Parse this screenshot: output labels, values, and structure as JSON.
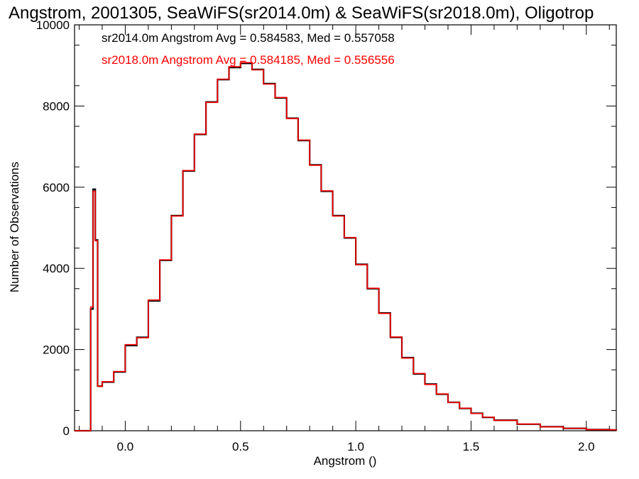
{
  "chart_data": {
    "type": "line",
    "title": "Angstrom, 2001305, SeaWiFS(sr2014.0m) & SeaWiFS(sr2018.0m), Oligotrop",
    "xlabel": "Angstrom ()",
    "ylabel": "Number of Observations",
    "xlim": [
      -0.22,
      2.13
    ],
    "ylim": [
      0,
      10000
    ],
    "x_ticks": [
      0.0,
      0.5,
      1.0,
      1.5,
      2.0
    ],
    "x_tick_labels": [
      "0.0",
      "0.5",
      "1.0",
      "1.5",
      "2.0"
    ],
    "y_ticks": [
      0,
      2000,
      4000,
      6000,
      8000,
      10000
    ],
    "y_tick_labels": [
      "0",
      "2000",
      "4000",
      "6000",
      "8000",
      "10000"
    ],
    "grid": false,
    "annotations": [
      {
        "text": "sr2014.0m Angstrom Avg = 0.584583, Med = 0.557058",
        "color": "#000000"
      },
      {
        "text": "sr2018.0m Angstrom Avg = 0.584185, Med = 0.556556",
        "color": "#ff0000"
      }
    ],
    "series": [
      {
        "color": "#000000",
        "x": [
          -0.22,
          -0.16,
          -0.15,
          -0.14,
          -0.13,
          -0.12,
          -0.11,
          -0.1,
          -0.05,
          0.0,
          0.05,
          0.1,
          0.15,
          0.2,
          0.25,
          0.3,
          0.35,
          0.4,
          0.45,
          0.5,
          0.55,
          0.6,
          0.65,
          0.7,
          0.75,
          0.8,
          0.85,
          0.9,
          0.95,
          1.0,
          1.05,
          1.1,
          1.15,
          1.2,
          1.25,
          1.3,
          1.35,
          1.4,
          1.45,
          1.5,
          1.55,
          1.6,
          1.7,
          1.8,
          1.9,
          2.0,
          2.1,
          2.13
        ],
        "values": [
          0,
          0,
          3000,
          5950,
          4700,
          1100,
          1100,
          1200,
          1450,
          2100,
          2300,
          3200,
          4200,
          5300,
          6400,
          7300,
          8100,
          8650,
          8950,
          9050,
          8900,
          8550,
          8200,
          7700,
          7150,
          6550,
          5900,
          5300,
          4750,
          4100,
          3500,
          2900,
          2300,
          1800,
          1400,
          1150,
          900,
          700,
          550,
          430,
          330,
          260,
          160,
          100,
          60,
          30,
          20,
          10
        ]
      },
      {
        "color": "#ff0000",
        "x": [
          -0.22,
          -0.16,
          -0.15,
          -0.14,
          -0.13,
          -0.12,
          -0.11,
          -0.1,
          -0.05,
          0.0,
          0.05,
          0.1,
          0.15,
          0.2,
          0.25,
          0.3,
          0.35,
          0.4,
          0.45,
          0.5,
          0.55,
          0.6,
          0.65,
          0.7,
          0.75,
          0.8,
          0.85,
          0.9,
          0.95,
          1.0,
          1.05,
          1.1,
          1.15,
          1.2,
          1.25,
          1.3,
          1.35,
          1.4,
          1.45,
          1.5,
          1.55,
          1.6,
          1.7,
          1.8,
          1.9,
          2.0,
          2.1,
          2.13
        ],
        "values": [
          0,
          0,
          3050,
          5900,
          4680,
          1100,
          1090,
          1210,
          1460,
          2120,
          2290,
          3220,
          4210,
          5290,
          6410,
          7310,
          8090,
          8660,
          8970,
          9070,
          8890,
          8540,
          8210,
          7690,
          7160,
          6540,
          5910,
          5290,
          4760,
          4090,
          3510,
          2890,
          2310,
          1790,
          1410,
          1140,
          905,
          695,
          555,
          425,
          335,
          255,
          165,
          95,
          62,
          28,
          22,
          10
        ]
      }
    ]
  }
}
